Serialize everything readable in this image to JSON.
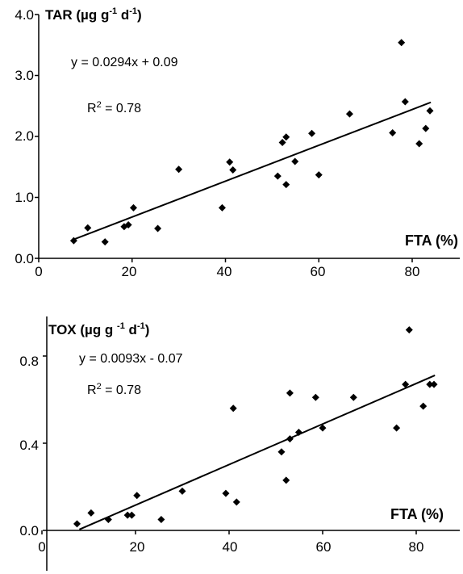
{
  "chart_data": [
    {
      "type": "scatter",
      "title": "TAR (µg g",
      "title_sup1": "-1",
      "title_mid": " d",
      "title_sup2": "-1",
      "title_end": ")",
      "xlabel": "FTA (%)",
      "ylabel": "",
      "xlim": [
        0,
        90
      ],
      "ylim": [
        0,
        4.0
      ],
      "xticks": [
        "0",
        "20",
        "40",
        "60",
        "80"
      ],
      "xtick_values": [
        0,
        20,
        40,
        60,
        80
      ],
      "yticks": [
        "0.0",
        "1.0",
        "2.0",
        "3.0",
        "4.0"
      ],
      "ytick_values": [
        0,
        1.0,
        2.0,
        3.0,
        4.0
      ],
      "equation": "y = 0.0294x + 0.09",
      "r2_label": "R",
      "r2_sup": "2",
      "r2_value": " =  0.78",
      "fit": {
        "slope": 0.0294,
        "intercept": 0.09,
        "x_range": [
          7.5,
          84
        ]
      },
      "marker_color": "#000000",
      "points": [
        [
          7.5,
          0.29
        ],
        [
          10.5,
          0.5
        ],
        [
          14.2,
          0.27
        ],
        [
          18.3,
          0.52
        ],
        [
          19.2,
          0.55
        ],
        [
          20.3,
          0.83
        ],
        [
          25.5,
          0.49
        ],
        [
          30.0,
          1.46
        ],
        [
          39.3,
          0.83
        ],
        [
          40.9,
          1.58
        ],
        [
          41.6,
          1.45
        ],
        [
          51.2,
          1.35
        ],
        [
          52.2,
          1.9
        ],
        [
          53.0,
          1.99
        ],
        [
          53.0,
          1.21
        ],
        [
          54.9,
          1.59
        ],
        [
          58.5,
          2.05
        ],
        [
          60.0,
          1.37
        ],
        [
          66.6,
          2.37
        ],
        [
          75.8,
          2.06
        ],
        [
          77.7,
          3.54
        ],
        [
          78.5,
          2.57
        ],
        [
          81.5,
          1.88
        ],
        [
          82.9,
          2.13
        ],
        [
          83.8,
          2.42
        ]
      ]
    },
    {
      "type": "scatter",
      "title": "TOX (µg g ",
      "title_sup1": "-1",
      "title_mid": " d",
      "title_sup2": "-1",
      "title_end": ")",
      "xlabel": "FTA (%)",
      "ylabel": "",
      "xlim": [
        0,
        90
      ],
      "ylim": [
        -0.12,
        0.9
      ],
      "xticks": [
        "0",
        "20",
        "40",
        "60",
        "80"
      ],
      "xtick_values": [
        0,
        20,
        40,
        60,
        80
      ],
      "yticks": [
        "0.0",
        "0.4",
        "0.8"
      ],
      "ytick_values": [
        0,
        0.4,
        0.8
      ],
      "equation": "y = 0.0093x - 0.07",
      "r2_label": "R",
      "r2_sup": "2",
      "r2_value": " =  0.78",
      "fit": {
        "slope": 0.0093,
        "intercept": -0.07,
        "x_range": [
          8,
          84
        ]
      },
      "marker_color": "#000000",
      "points": [
        [
          7.5,
          0.03
        ],
        [
          10.5,
          0.08
        ],
        [
          14.2,
          0.05
        ],
        [
          18.3,
          0.07
        ],
        [
          19.2,
          0.07
        ],
        [
          20.3,
          0.16
        ],
        [
          25.5,
          0.05
        ],
        [
          30.0,
          0.18
        ],
        [
          39.3,
          0.17
        ],
        [
          40.9,
          0.56
        ],
        [
          41.6,
          0.13
        ],
        [
          51.2,
          0.36
        ],
        [
          52.2,
          0.23
        ],
        [
          53.0,
          0.63
        ],
        [
          53.0,
          0.42
        ],
        [
          54.9,
          0.45
        ],
        [
          58.5,
          0.61
        ],
        [
          60.0,
          0.47
        ],
        [
          66.6,
          0.61
        ],
        [
          75.8,
          0.47
        ],
        [
          77.7,
          0.67
        ],
        [
          78.5,
          0.92
        ],
        [
          81.5,
          0.57
        ],
        [
          82.9,
          0.67
        ],
        [
          83.8,
          0.67
        ]
      ]
    }
  ]
}
